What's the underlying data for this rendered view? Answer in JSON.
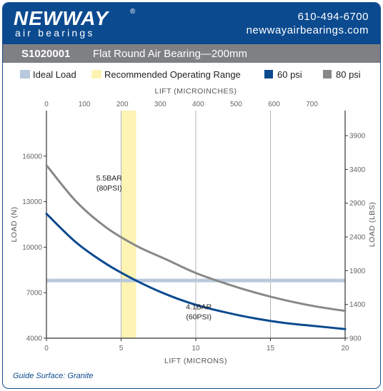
{
  "header": {
    "brand": "NEWWAY",
    "registered": "®",
    "tagline": "air bearings",
    "phone": "610-494-6700",
    "website": "newwayairbearings.com",
    "bg_color": "#0b4a8f"
  },
  "title_bar": {
    "model": "S1020001",
    "product": "Flat Round Air Bearing—200mm",
    "bg_color": "#7f8083"
  },
  "legend": [
    {
      "label": "Ideal Load",
      "color": "#b8c9dd"
    },
    {
      "label": "Recommended Operating Range",
      "color": "#fdf4b4"
    },
    {
      "label": "60 psi",
      "color": "#0b4a8f"
    },
    {
      "label": "80 psi",
      "color": "#888888"
    }
  ],
  "footer": {
    "guide_surface": "Guide Surface: Granite"
  },
  "chart_data": {
    "type": "line",
    "title": "S1020001 Flat Round Air Bearing—200mm",
    "xlabel": "LIFT (MICRONS)",
    "ylabel": "LOAD (N)",
    "x2label": "LIFT (MICROINCHES)",
    "y2label": "LOAD (LBS)",
    "xlim": [
      0,
      20
    ],
    "ylim": [
      4000,
      19000
    ],
    "x_ticks": [
      "0",
      "5",
      "10",
      "15",
      "20"
    ],
    "y_ticks": [
      "4000",
      "7000",
      "10000",
      "13000",
      "16000"
    ],
    "x2_ticks": [
      "0",
      "100",
      "200",
      "300",
      "400",
      "500",
      "600",
      "700"
    ],
    "y2_ticks": [
      "900",
      "1400",
      "1900",
      "2400",
      "2900",
      "3400",
      "3900"
    ],
    "grid": true,
    "ideal_load": 7800,
    "recommended_range": [
      5,
      6
    ],
    "series": [
      {
        "name": "80 psi",
        "color": "#888888",
        "label": [
          "5.5BAR",
          "(80PSI)"
        ],
        "x": [
          0,
          2,
          4,
          6,
          8,
          10,
          12,
          14,
          16,
          18,
          20
        ],
        "y": [
          15400,
          13000,
          11300,
          10100,
          9200,
          8300,
          7600,
          7000,
          6500,
          6100,
          5800
        ]
      },
      {
        "name": "60 psi",
        "color": "#0b4a8f",
        "label": [
          "4.1BAR",
          "(60PSI)"
        ],
        "x": [
          0,
          2,
          4,
          6,
          8,
          10,
          12,
          14,
          16,
          18,
          20
        ],
        "y": [
          12200,
          10300,
          8900,
          7800,
          6900,
          6200,
          5700,
          5300,
          5000,
          4800,
          4600
        ]
      }
    ]
  }
}
